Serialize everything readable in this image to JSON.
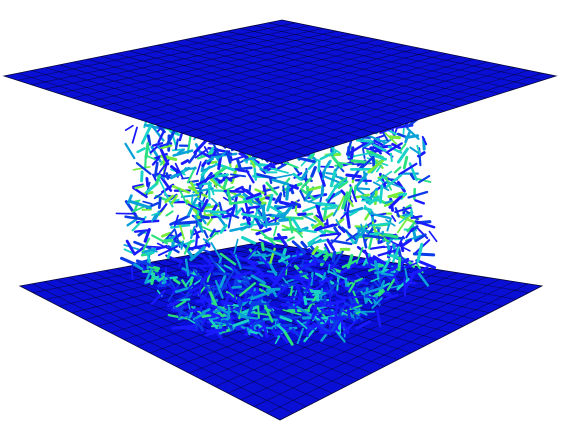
{
  "scene": {
    "background": "#ffffff",
    "plate_color": "#0a0fd6",
    "plate_mesh_color": "#05063a",
    "grid_divisions": 20,
    "fiber_colors": [
      "#1a1aff",
      "#0b3ce8",
      "#0aa0d8",
      "#19d3c8",
      "#2be07e",
      "#77ec3a"
    ]
  }
}
